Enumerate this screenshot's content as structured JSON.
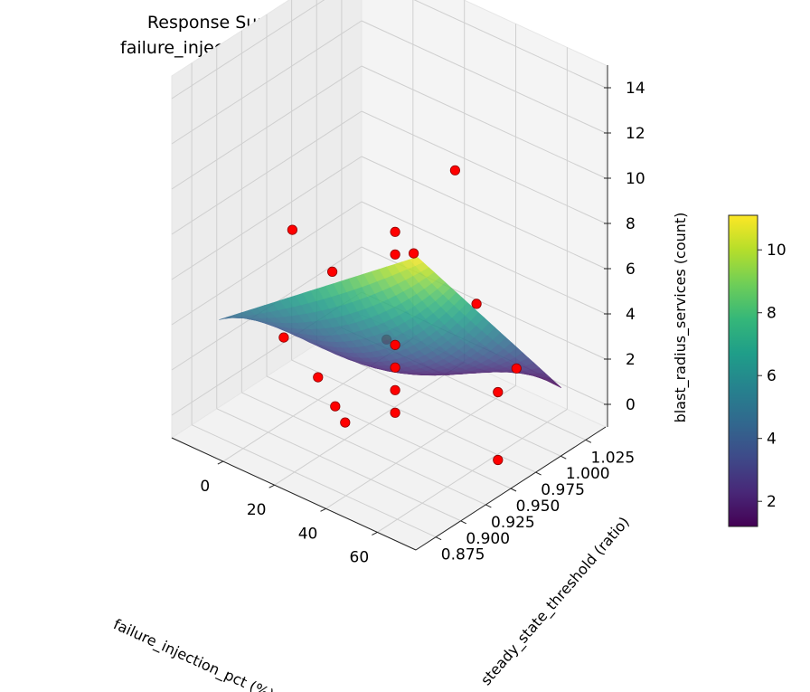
{
  "chart_data": {
    "type": "surface3d",
    "title_lines": [
      "Response Surface: blast_radius_services",
      "failure_injection_pct vs steady_state_threshold"
    ],
    "xlabel": "failure_injection_pct (%)",
    "ylabel": "steady_state_threshold (ratio)",
    "zlabel": "blast_radius_services (count)",
    "x_ticks": [
      "0",
      "20",
      "40",
      "60"
    ],
    "y_ticks": [
      "0.875",
      "0.900",
      "0.925",
      "0.950",
      "0.975",
      "1.000",
      "1.025"
    ],
    "z_ticks": [
      "0",
      "2",
      "4",
      "6",
      "8",
      "10",
      "12",
      "14"
    ],
    "colorbar": {
      "colormap": "viridis",
      "range": [
        1.2,
        11.1
      ],
      "ticks": [
        "2",
        "4",
        "6",
        "8",
        "10"
      ]
    },
    "xlim": [
      -20,
      75
    ],
    "ylim": [
      0.855,
      1.045
    ],
    "zlim": [
      -1,
      15
    ],
    "surface": {
      "x_range": [
        -8.6,
        68.6
      ],
      "y_range": [
        0.873,
        1.017
      ],
      "corner_values": {
        "x0_y0": 4.3,
        "x0_y1": 1.5,
        "x1_y0": 11.1,
        "x1_y1": 1.2
      },
      "center_value": 2.0
    },
    "points": [
      {
        "x": 0,
        "y": 0.95,
        "z": 0.0
      },
      {
        "x": 70,
        "y": 0.95,
        "z": 0.0
      },
      {
        "x": 30,
        "y": 0.89,
        "z": 2.0
      },
      {
        "x": 50,
        "y": 1.02,
        "z": 1.0
      },
      {
        "x": 30,
        "y": 0.95,
        "z": 0.0
      },
      {
        "x": 30,
        "y": 0.95,
        "z": 1.0
      },
      {
        "x": 30,
        "y": 0.95,
        "z": 2.0
      },
      {
        "x": 30,
        "y": 0.95,
        "z": 3.0
      },
      {
        "x": 30,
        "y": 0.95,
        "z": 7.0
      },
      {
        "x": 30,
        "y": 0.95,
        "z": 8.0
      },
      {
        "x": 10,
        "y": 0.89,
        "z": 4.0
      },
      {
        "x": 50,
        "y": 0.89,
        "z": 6.0
      },
      {
        "x": 10,
        "y": 1.02,
        "z": 4.0
      },
      {
        "x": 30,
        "y": 1.01,
        "z": 9.0
      },
      {
        "x": -10,
        "y": 0.95,
        "z": 6.0
      },
      {
        "x": 70,
        "y": 0.95,
        "z": 3.0
      },
      {
        "x": -10,
        "y": 0.99,
        "z": 3.0
      },
      {
        "x": 50,
        "y": 0.98,
        "z": 5.0
      },
      {
        "x": 30,
        "y": 0.9,
        "z": 1.0
      }
    ]
  }
}
